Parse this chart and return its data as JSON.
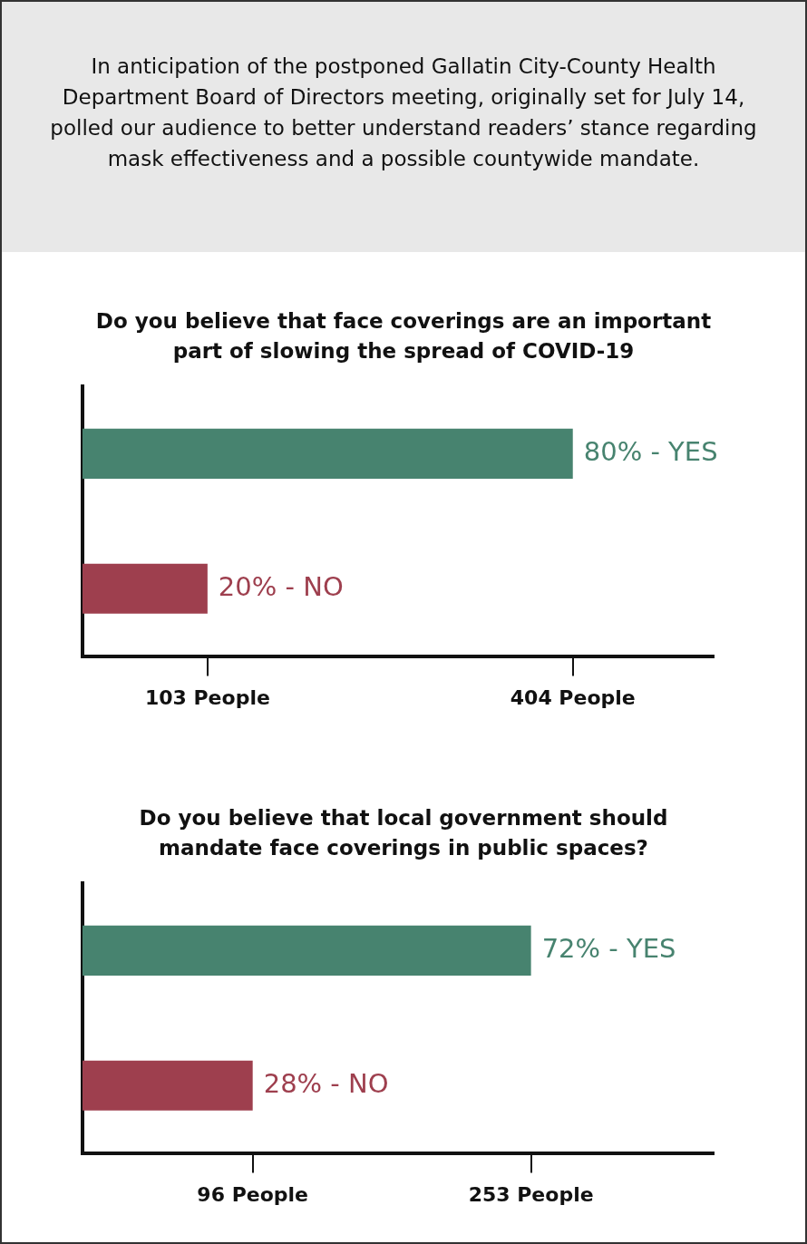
{
  "chart_data": [
    {
      "type": "bar",
      "orientation": "horizontal",
      "title": "Do you believe that face coverings are an important part of slowing the spread of COVID-19",
      "categories": [
        null,
        null
      ],
      "values": [
        404,
        103
      ],
      "colors": [
        "#47836f",
        "#9e3f4e"
      ],
      "xlim": [
        0,
        520
      ],
      "xticks": [
        {
          "value": 103,
          "label": "103 People"
        },
        {
          "value": 404,
          "label": "404 People"
        }
      ],
      "tick_labels": "x",
      "annotations": [
        "In anticipation of the postponed Gallatin City-County Health Department Board of Directors meeting, originally set for July 14, polled our audience to better understand readers’ stance regarding mask effectiveness and a possible countywide mandate.",
        {
          "text": "80% - YES",
          "x": 404
        },
        {
          "text": "20% - NO",
          "x": 103
        }
      ]
    },
    {
      "type": "bar",
      "orientation": "horizontal",
      "title": "Do you believe that local government should mandate face coverings in public spaces?",
      "categories": [
        null,
        null
      ],
      "values": [
        253,
        96
      ],
      "colors": [
        "#47836f",
        "#9e3f4e"
      ],
      "xlim": [
        0,
        356
      ],
      "xticks": [
        {
          "value": 96,
          "label": "96 People"
        },
        {
          "value": 253,
          "label": "253 People"
        }
      ],
      "tick_labels": "x",
      "annotations": [
        {
          "text": "72% - YES",
          "x": 253
        },
        {
          "text": "28% - NO",
          "x": 96
        }
      ]
    }
  ]
}
